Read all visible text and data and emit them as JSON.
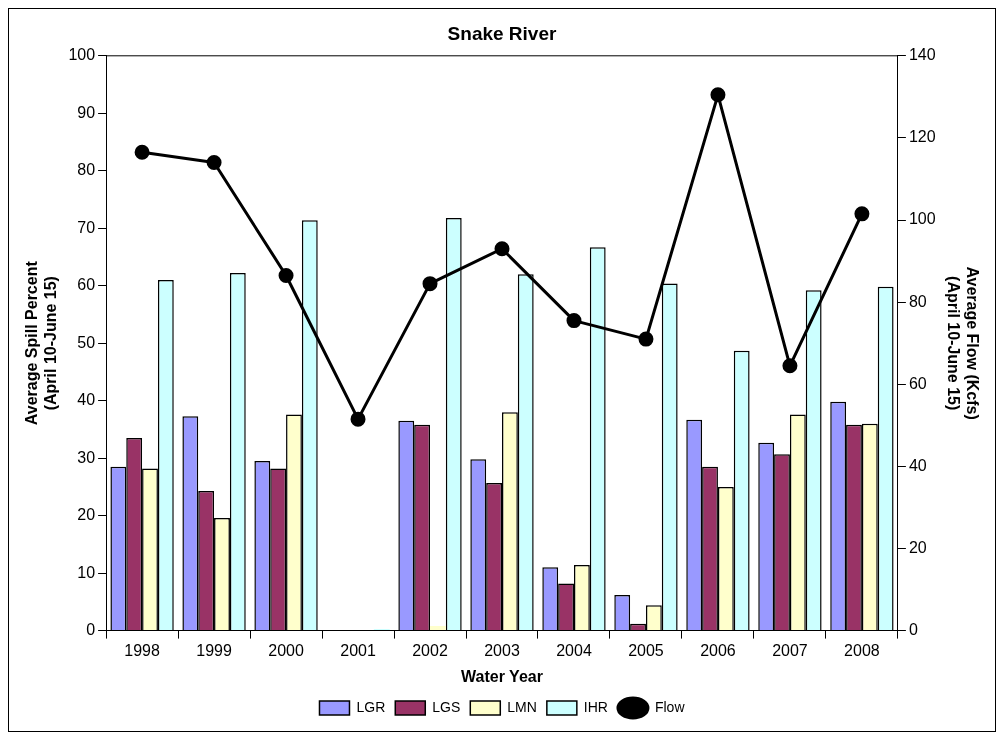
{
  "chart_data": {
    "type": "bar",
    "title": "Snake River",
    "xlabel": "Water Year",
    "ylabel": "Average Spill Percent\n(April 10-June 15)",
    "y2label": "Average Flow (Kcfs)\n(April 10-June 15)",
    "categories": [
      "1998",
      "1999",
      "2000",
      "2001",
      "2002",
      "2003",
      "2004",
      "2005",
      "2006",
      "2007",
      "2008"
    ],
    "series": [
      {
        "name": "LGR",
        "color": "#9999ff",
        "values": [
          28.5,
          37.3,
          29.5,
          0,
          36.5,
          29.8,
          11,
          6.2,
          36.7,
          32.7,
          39.8
        ]
      },
      {
        "name": "LGS",
        "color": "#993366",
        "values": [
          33.5,
          24.3,
          28.2,
          0,
          35.8,
          25.7,
          8.2,
          1.2,
          28.5,
          30.7,
          35.8
        ]
      },
      {
        "name": "LMN",
        "color": "#ffffcc",
        "values": [
          28.2,
          19.6,
          37.6,
          0,
          0.8,
          38,
          11.4,
          4.4,
          25,
          37.6,
          36
        ]
      },
      {
        "name": "IHR",
        "color": "#ccffff",
        "values": [
          61,
          62.2,
          71.4,
          0.3,
          71.8,
          62,
          66.7,
          60.4,
          48.7,
          59.2,
          59.8
        ]
      },
      {
        "name": "Flow",
        "type": "line",
        "axis": "y2",
        "color": "#000000",
        "marker": "circle",
        "values": [
          116.5,
          114,
          86.5,
          51.5,
          84.5,
          93,
          75.5,
          71,
          130.5,
          64.5,
          101.5
        ]
      }
    ],
    "ylim": [
      0,
      100
    ],
    "yticks": [
      0,
      10,
      20,
      30,
      40,
      50,
      60,
      70,
      80,
      90,
      100
    ],
    "y2lim": [
      0,
      140
    ],
    "y2ticks": [
      0,
      20,
      40,
      60,
      80,
      100,
      120,
      140
    ],
    "grid": false,
    "legend": "bottom"
  }
}
